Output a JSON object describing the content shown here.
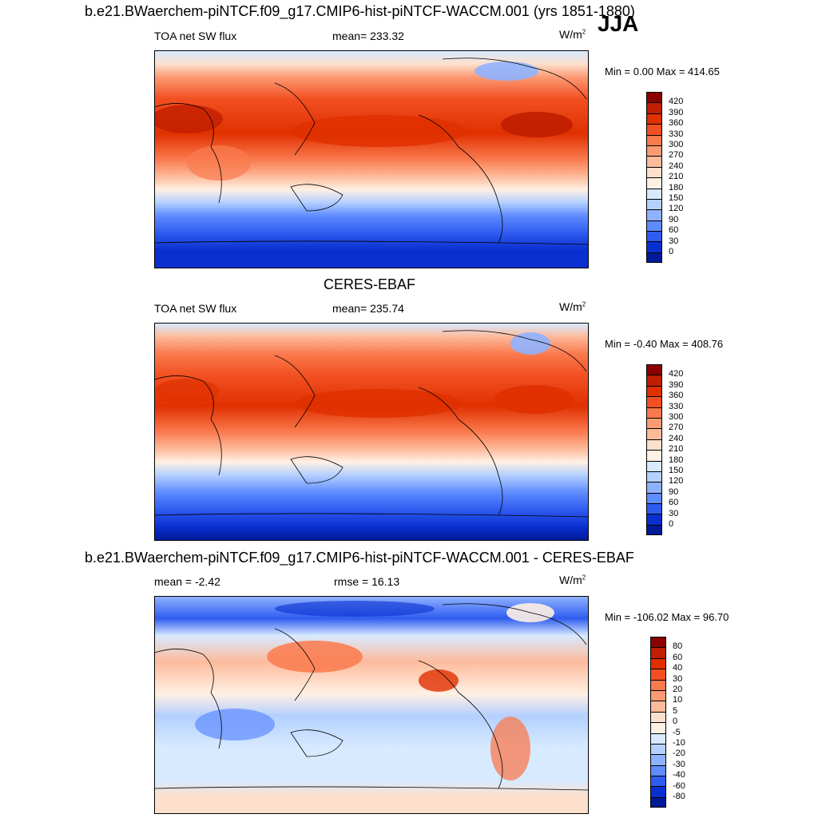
{
  "season": "JJA",
  "units_base": "W/m",
  "units_exp": "2",
  "panels": [
    {
      "title": "b.e21.BWaerchem-piNTCF.f09_g17.CMIP6-hist-piNTCF-WACCM.001 (yrs 1851-1880)",
      "left_label": "TOA net SW flux",
      "center_label": "mean= 233.32",
      "minmax": "Min =   0.00 Max = 414.65"
    },
    {
      "title": "CERES-EBAF",
      "left_label": "TOA net SW flux",
      "center_label": "mean= 235.74",
      "minmax": "Min =  -0.40 Max = 408.76"
    },
    {
      "title": "b.e21.BWaerchem-piNTCF.f09_g17.CMIP6-hist-piNTCF-WACCM.001 - CERES-EBAF",
      "left_label": "mean =  -2.42",
      "center_label": "rmse =  16.13",
      "minmax": "Min = -106.02 Max =  96.70"
    }
  ],
  "colorbars": {
    "abs": {
      "labels": [
        "420",
        "390",
        "360",
        "330",
        "300",
        "270",
        "240",
        "210",
        "180",
        "150",
        "120",
        "90",
        "60",
        "30",
        "0"
      ],
      "colors": [
        "#8b0000",
        "#c01e00",
        "#e03000",
        "#f25022",
        "#fa7a4e",
        "#fc9a74",
        "#fdbb9c",
        "#fde0cc",
        "#fff0e4",
        "#d7eaff",
        "#b4d0ff",
        "#8fb2ff",
        "#5f8cff",
        "#2f5cf0",
        "#0a2fd0",
        "#001a99"
      ]
    },
    "diff": {
      "labels": [
        "80",
        "60",
        "40",
        "30",
        "20",
        "10",
        "5",
        "0",
        "-5",
        "-10",
        "-20",
        "-30",
        "-40",
        "-60",
        "-80"
      ],
      "colors": [
        "#8b0000",
        "#c01e00",
        "#e03000",
        "#f25022",
        "#fa7a4e",
        "#fc9a74",
        "#fdbb9c",
        "#fde0cc",
        "#fff0e4",
        "#d7eaff",
        "#b4d0ff",
        "#8fb2ff",
        "#5f8cff",
        "#2f5cf0",
        "#0a2fd0",
        "#001a99"
      ]
    }
  },
  "chart_data": [
    {
      "type": "heatmap",
      "title": "b.e21.BWaerchem-piNTCF.f09_g17.CMIP6-hist-piNTCF-WACCM.001 (yrs 1851-1880)",
      "variable": "TOA net SW flux",
      "mean": 233.32,
      "min": 0.0,
      "max": 414.65,
      "contour_levels": [
        0,
        30,
        60,
        90,
        120,
        150,
        180,
        210,
        240,
        270,
        300,
        330,
        360,
        390,
        420
      ]
    },
    {
      "type": "heatmap",
      "title": "CERES-EBAF",
      "variable": "TOA net SW flux",
      "mean": 235.74,
      "min": -0.4,
      "max": 408.76,
      "contour_levels": [
        0,
        30,
        60,
        90,
        120,
        150,
        180,
        210,
        240,
        270,
        300,
        330,
        360,
        390,
        420
      ]
    },
    {
      "type": "heatmap",
      "title": "b.e21.BWaerchem-piNTCF.f09_g17.CMIP6-hist-piNTCF-WACCM.001 - CERES-EBAF",
      "mean": -2.42,
      "rmse": 16.13,
      "min": -106.02,
      "max": 96.7,
      "contour_levels": [
        -80,
        -60,
        -40,
        -30,
        -20,
        -10,
        -5,
        0,
        5,
        10,
        20,
        30,
        40,
        60,
        80
      ]
    }
  ]
}
